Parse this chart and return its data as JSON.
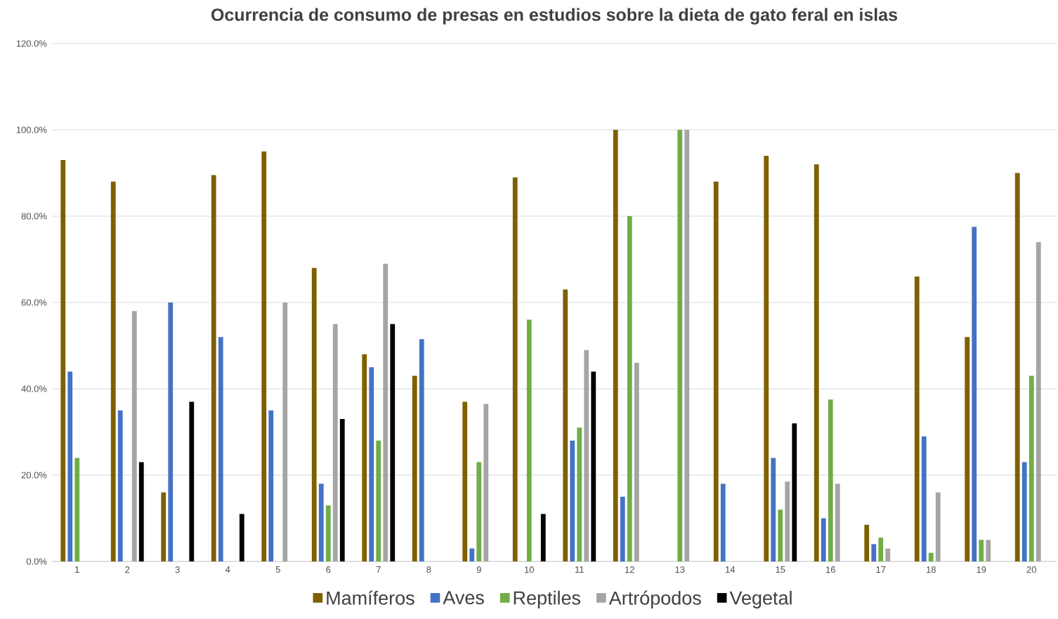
{
  "chart_data": {
    "type": "bar",
    "title": "Ocurrencia de consumo de presas en estudios sobre la dieta de gato feral en islas",
    "categories": [
      "1",
      "2",
      "3",
      "4",
      "5",
      "6",
      "7",
      "8",
      "9",
      "10",
      "11",
      "12",
      "13",
      "14",
      "15",
      "16",
      "17",
      "18",
      "19",
      "20"
    ],
    "series": [
      {
        "name": "Mamíferos",
        "color": "#7f6000",
        "values": [
          93,
          88,
          16,
          89.5,
          95,
          68,
          48,
          43,
          37,
          89,
          63,
          100,
          0,
          88,
          94,
          92,
          8.5,
          66,
          52,
          90
        ]
      },
      {
        "name": "Aves",
        "color": "#4472c4",
        "values": [
          44,
          35,
          60,
          52,
          35,
          18,
          45,
          51.5,
          3,
          0,
          28,
          15,
          0,
          18,
          24,
          10,
          4,
          29,
          77.5,
          23
        ]
      },
      {
        "name": "Reptiles",
        "color": "#70ad47",
        "values": [
          24,
          0,
          0,
          0,
          0,
          13,
          28,
          0,
          23,
          56,
          31,
          80,
          100,
          0,
          12,
          37.5,
          5.5,
          2,
          5,
          43
        ]
      },
      {
        "name": "Artrópodos",
        "color": "#a5a5a5",
        "values": [
          0,
          58,
          0,
          0,
          60,
          55,
          69,
          0,
          36.5,
          0,
          49,
          46,
          100,
          0,
          18.5,
          18,
          3,
          16,
          5,
          74
        ]
      },
      {
        "name": "Vegetal",
        "color": "#000000",
        "values": [
          0,
          23,
          37,
          11,
          0,
          33,
          55,
          0,
          0,
          11,
          44,
          0,
          0,
          0,
          32,
          0,
          0,
          0,
          0,
          0
        ]
      }
    ],
    "ylim": [
      0,
      120
    ],
    "yticks": [
      {
        "value": 0,
        "label": "0.0%"
      },
      {
        "value": 20,
        "label": "20.0%"
      },
      {
        "value": 40,
        "label": "40.0%"
      },
      {
        "value": 60,
        "label": "60.0%"
      },
      {
        "value": 80,
        "label": "80.0%"
      },
      {
        "value": 100,
        "label": "100.0%"
      },
      {
        "value": 120,
        "label": "120.0%"
      }
    ],
    "grid": "y",
    "legend": "bottom"
  }
}
